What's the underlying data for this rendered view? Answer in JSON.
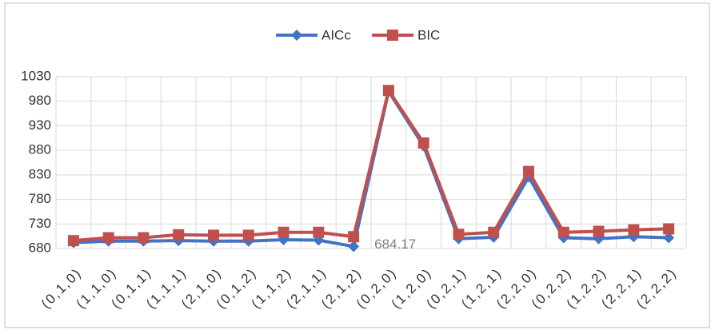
{
  "chart_data": {
    "type": "line",
    "categories": [
      "(0,1,0)",
      "(1,1,0)",
      "(0,1,1)",
      "(1,1,1)",
      "(2,1,0)",
      "(0,1,2)",
      "(1,1,2)",
      "(2,1,1)",
      "(2,1,2)",
      "(0,2,0)",
      "(1,2,0)",
      "(0,2,1)",
      "(1,2,1)",
      "(2,2,0)",
      "(0,2,2)",
      "(1,2,2)",
      "(2,2,1)",
      "(2,2,2)"
    ],
    "series": [
      {
        "name": "AICc",
        "color": "#4472c4",
        "marker": "diamond",
        "values": [
          692,
          695,
          695,
          696,
          695,
          695,
          698,
          697,
          684.17,
          1000,
          889,
          700,
          703,
          826,
          702,
          700,
          704,
          702
        ]
      },
      {
        "name": "BIC",
        "color": "#c0504d",
        "marker": "square",
        "values": [
          696,
          702,
          702,
          708,
          707,
          707,
          713,
          713,
          704,
          1002,
          895,
          709,
          713,
          837,
          713,
          715,
          718,
          720
        ]
      }
    ],
    "ylim": [
      680,
      1030
    ],
    "yticks": [
      680,
      730,
      780,
      830,
      880,
      930,
      980,
      1030
    ],
    "grid": true,
    "legend": "top"
  }
}
